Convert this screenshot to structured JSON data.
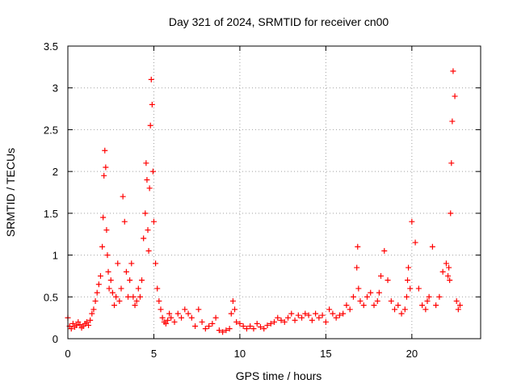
{
  "chart_data": {
    "type": "scatter",
    "title": "Day 321 of 2024, SRMTID for receiver cn00",
    "xlabel": "GPS time / hours",
    "ylabel": "SRMTID / TECUs",
    "xlim": [
      0,
      24
    ],
    "ylim": [
      0,
      3.5
    ],
    "x_ticks": [
      0,
      5,
      10,
      15,
      20
    ],
    "x_tick_labels": [
      "0",
      "5",
      "10",
      "15",
      "20"
    ],
    "y_ticks": [
      0,
      0.5,
      1,
      1.5,
      2,
      2.5,
      3,
      3.5
    ],
    "y_tick_labels": [
      "0",
      "0.5",
      "1",
      "1.5",
      "2",
      "2.5",
      "3",
      "3.5"
    ],
    "grid": true,
    "marker": "+",
    "color": "#ff0000",
    "series": [
      {
        "name": "SRMTID",
        "x": [
          0.0,
          0.1,
          0.2,
          0.3,
          0.4,
          0.5,
          0.6,
          0.7,
          0.8,
          0.9,
          1.0,
          1.1,
          1.2,
          1.3,
          1.4,
          1.5,
          1.6,
          1.7,
          1.8,
          1.9,
          2.0,
          2.05,
          2.1,
          2.15,
          2.2,
          2.25,
          2.3,
          2.35,
          2.4,
          2.5,
          2.6,
          2.7,
          2.8,
          2.9,
          3.0,
          3.1,
          3.2,
          3.3,
          3.4,
          3.5,
          3.6,
          3.7,
          3.8,
          3.9,
          4.0,
          4.1,
          4.2,
          4.3,
          4.4,
          4.5,
          4.55,
          4.6,
          4.65,
          4.7,
          4.75,
          4.8,
          4.85,
          4.9,
          4.95,
          5.0,
          5.1,
          5.2,
          5.3,
          5.4,
          5.5,
          5.6,
          5.7,
          5.8,
          5.9,
          6.0,
          6.2,
          6.4,
          6.6,
          6.8,
          7.0,
          7.2,
          7.4,
          7.6,
          7.8,
          8.0,
          8.2,
          8.4,
          8.6,
          8.8,
          9.0,
          9.2,
          9.4,
          9.5,
          9.6,
          9.7,
          9.8,
          10.0,
          10.2,
          10.4,
          10.6,
          10.8,
          11.0,
          11.2,
          11.4,
          11.6,
          11.8,
          12.0,
          12.2,
          12.4,
          12.6,
          12.8,
          13.0,
          13.2,
          13.4,
          13.6,
          13.8,
          14.0,
          14.2,
          14.4,
          14.6,
          14.8,
          15.0,
          15.2,
          15.4,
          15.6,
          15.8,
          16.0,
          16.2,
          16.4,
          16.6,
          16.8,
          16.85,
          16.9,
          17.0,
          17.2,
          17.4,
          17.6,
          17.8,
          18.0,
          18.1,
          18.2,
          18.4,
          18.6,
          18.8,
          19.0,
          19.2,
          19.4,
          19.6,
          19.7,
          19.75,
          19.8,
          19.9,
          20.0,
          20.2,
          20.4,
          20.6,
          20.8,
          20.9,
          21.0,
          21.2,
          21.4,
          21.6,
          21.8,
          22.0,
          22.1,
          22.15,
          22.2,
          22.25,
          22.3,
          22.35,
          22.4,
          22.5,
          22.6,
          22.7,
          22.8
        ],
        "y": [
          0.25,
          0.15,
          0.12,
          0.18,
          0.14,
          0.16,
          0.2,
          0.17,
          0.13,
          0.15,
          0.18,
          0.2,
          0.16,
          0.22,
          0.3,
          0.35,
          0.45,
          0.55,
          0.65,
          0.75,
          1.1,
          1.45,
          1.95,
          2.25,
          2.05,
          1.3,
          1.0,
          0.8,
          0.6,
          0.7,
          0.55,
          0.4,
          0.5,
          0.9,
          0.45,
          0.6,
          1.7,
          1.4,
          0.8,
          0.5,
          0.7,
          0.9,
          0.5,
          0.4,
          0.45,
          0.6,
          0.5,
          0.7,
          1.2,
          1.5,
          2.1,
          1.9,
          1.3,
          1.05,
          1.8,
          2.55,
          3.1,
          2.8,
          2.0,
          1.4,
          0.9,
          0.6,
          0.45,
          0.35,
          0.25,
          0.2,
          0.18,
          0.22,
          0.3,
          0.25,
          0.2,
          0.3,
          0.25,
          0.35,
          0.3,
          0.25,
          0.15,
          0.35,
          0.2,
          0.12,
          0.15,
          0.18,
          0.25,
          0.1,
          0.08,
          0.1,
          0.12,
          0.3,
          0.45,
          0.35,
          0.2,
          0.18,
          0.15,
          0.12,
          0.15,
          0.12,
          0.18,
          0.14,
          0.12,
          0.16,
          0.18,
          0.2,
          0.25,
          0.22,
          0.2,
          0.25,
          0.3,
          0.22,
          0.28,
          0.25,
          0.3,
          0.28,
          0.22,
          0.3,
          0.25,
          0.28,
          0.2,
          0.35,
          0.3,
          0.25,
          0.28,
          0.3,
          0.4,
          0.35,
          0.5,
          0.85,
          1.1,
          0.6,
          0.45,
          0.4,
          0.5,
          0.55,
          0.4,
          0.45,
          0.55,
          0.75,
          1.05,
          0.7,
          0.45,
          0.35,
          0.4,
          0.3,
          0.35,
          0.5,
          0.7,
          0.85,
          0.6,
          1.4,
          1.15,
          0.6,
          0.4,
          0.35,
          0.45,
          0.5,
          1.1,
          0.4,
          0.5,
          0.8,
          0.9,
          0.75,
          0.85,
          0.7,
          1.5,
          2.1,
          2.6,
          3.2,
          2.9,
          0.45,
          0.35,
          0.4
        ]
      }
    ]
  }
}
